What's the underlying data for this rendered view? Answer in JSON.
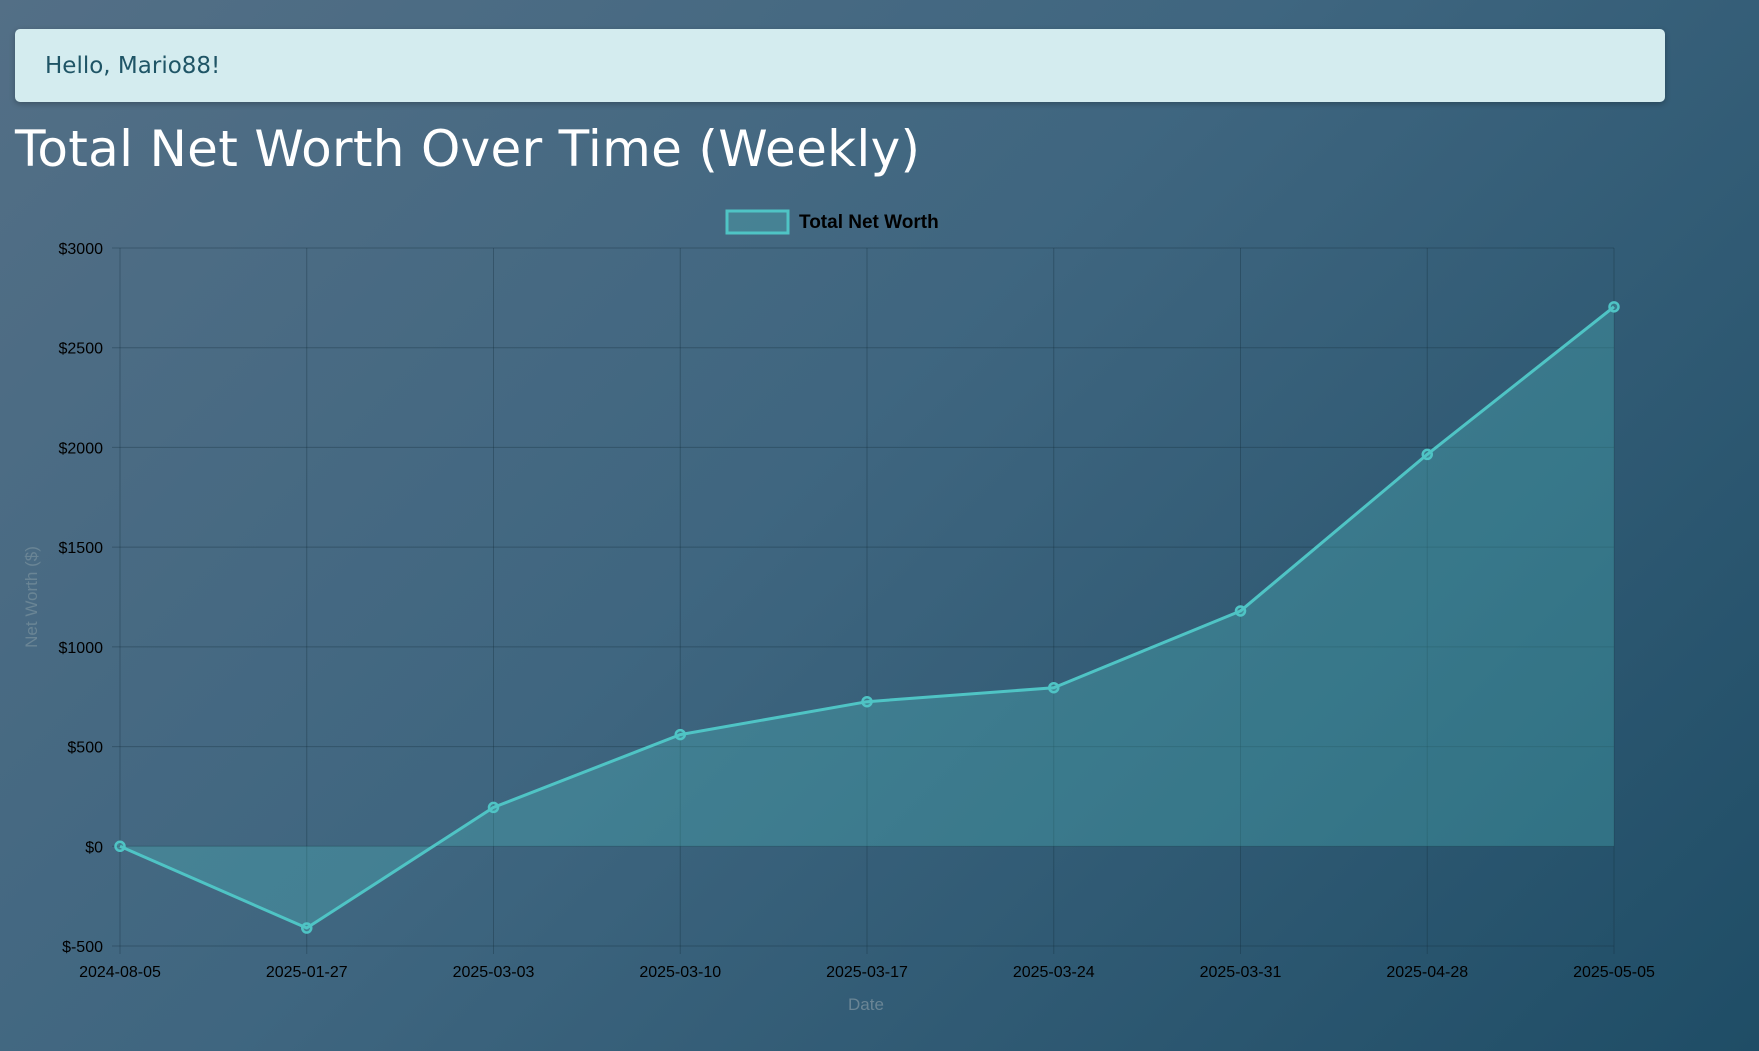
{
  "header": {
    "greeting": "Hello, Mario88!"
  },
  "page": {
    "title": "Total Net Worth Over Time (Weekly)"
  },
  "colors": {
    "line": "#4fc4c5",
    "fill": "rgba(79,196,197,0.28)",
    "grid": "rgba(20,45,60,0.35)",
    "tick_text": "#000000",
    "axis_title": "#6a8595"
  },
  "chart_data": {
    "type": "area",
    "title": "",
    "legend": {
      "position": "top",
      "entries": [
        "Total Net Worth"
      ]
    },
    "x": [
      "2024-08-05",
      "2025-01-27",
      "2025-03-03",
      "2025-03-10",
      "2025-03-17",
      "2025-03-24",
      "2025-03-31",
      "2025-04-28",
      "2025-05-05"
    ],
    "series": [
      {
        "name": "Total Net Worth",
        "values": [
          0,
          -410,
          195,
          560,
          725,
          795,
          1180,
          1965,
          2705
        ]
      }
    ],
    "xlabel": "Date",
    "ylabel": "Net Worth ($)",
    "ylim": [
      -500,
      3000
    ],
    "yticks": [
      -500,
      0,
      500,
      1000,
      1500,
      2000,
      2500,
      3000
    ],
    "ytick_labels": [
      "$-500",
      "$0",
      "$500",
      "$1000",
      "$1500",
      "$2000",
      "$2500",
      "$3000"
    ],
    "grid": true
  }
}
